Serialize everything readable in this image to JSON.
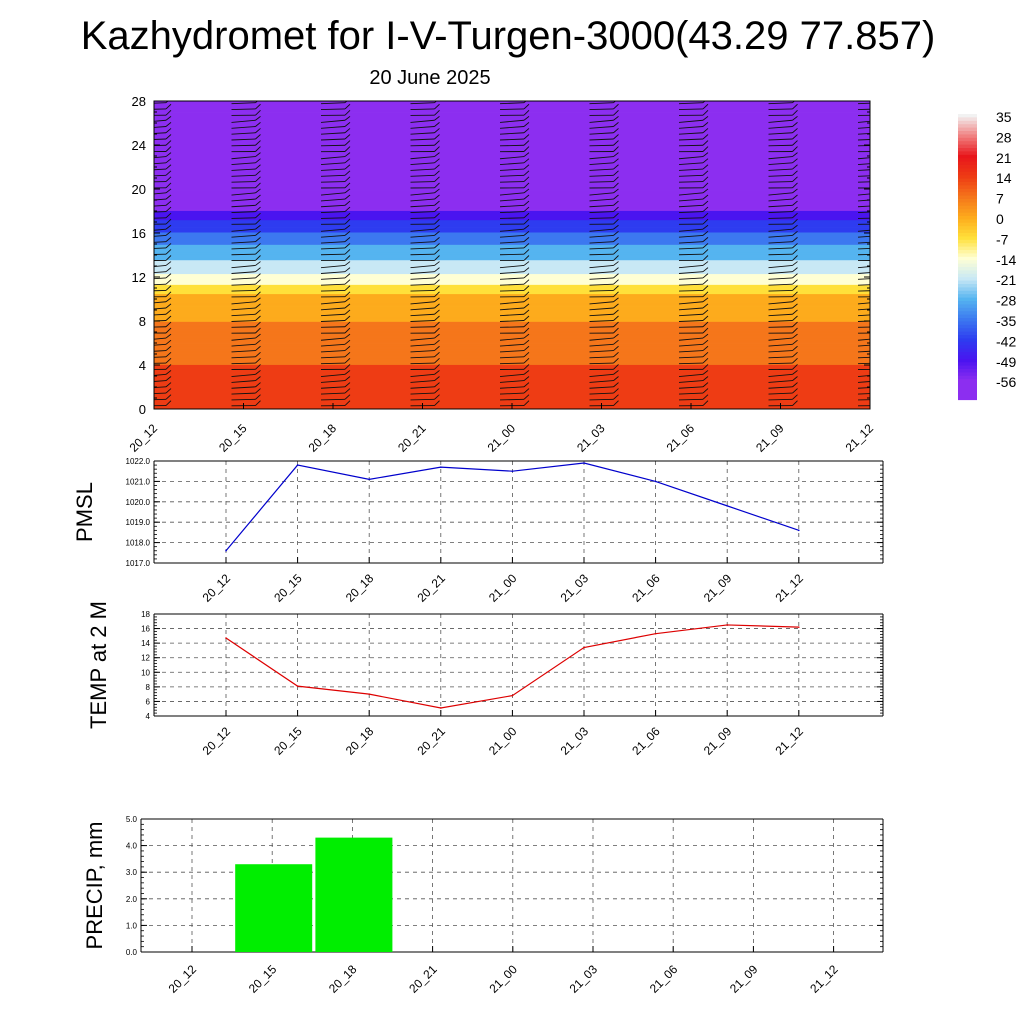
{
  "title": "Kazhydromet for I-V-Turgen-3000(43.29 77.857)",
  "subtitle": "20 June 2025",
  "chart_data": [
    {
      "type": "heatmap",
      "title": "",
      "x_ticks": [
        "20_12",
        "20_15",
        "20_18",
        "20_21",
        "21_00",
        "21_03",
        "21_06",
        "21_09",
        "21_12"
      ],
      "y_ticks": [
        0,
        4,
        8,
        12,
        16,
        20,
        24,
        28
      ],
      "ylim": [
        0,
        28
      ],
      "colorbar": {
        "labels": [
          "35",
          "28",
          "21",
          "14",
          "7",
          "0",
          "-7",
          "-14",
          "-21",
          "-28",
          "-35",
          "-42",
          "-49",
          "-56"
        ],
        "colors": [
          "#f2f2f2",
          "#f08080",
          "#e8161b",
          "#ee3c14",
          "#f5761b",
          "#fdab1c",
          "#ffe03a",
          "#ffffd4",
          "#c8e8f5",
          "#55b4f0",
          "#3c78f0",
          "#2e3cf0",
          "#4a14f0",
          "#8c2ef0"
        ]
      },
      "temperature_profile": [
        {
          "h": 0,
          "t": 21
        },
        {
          "h": 4,
          "t": 14
        },
        {
          "h": 8,
          "t": 7
        },
        {
          "h": 10.5,
          "t": 0
        },
        {
          "h": 11.5,
          "t": -9
        },
        {
          "h": 13,
          "t": -18
        },
        {
          "h": 15,
          "t": -28
        },
        {
          "h": 17,
          "t": -40
        },
        {
          "h": 19,
          "t": -56
        },
        {
          "h": 21,
          "t": -49
        },
        {
          "h": 22.5,
          "t": -58
        },
        {
          "h": 28,
          "t": -58
        }
      ],
      "wind_barbs": "black barbs at every level for each time step"
    },
    {
      "type": "line",
      "ylabel": "PMSL",
      "x": [
        "20_12",
        "20_15",
        "20_18",
        "20_21",
        "21_00",
        "21_03",
        "21_06",
        "21_09",
        "21_12"
      ],
      "series": [
        {
          "color": "#0000cc",
          "values": [
            1017.6,
            1021.8,
            1021.1,
            1021.7,
            1021.5,
            1021.9,
            1021.0,
            1019.8,
            1018.6
          ]
        }
      ],
      "ylim": [
        1017.0,
        1022.0
      ],
      "y_ticks": [
        "1017.0",
        "1018.0",
        "1019.0",
        "1020.0",
        "1021.0",
        "1022.0"
      ]
    },
    {
      "type": "line",
      "ylabel": "TEMP at 2 M",
      "x": [
        "20_12",
        "20_15",
        "20_18",
        "20_21",
        "21_00",
        "21_03",
        "21_06",
        "21_09",
        "21_12"
      ],
      "series": [
        {
          "color": "#dd0000",
          "values": [
            14.7,
            8.1,
            7.0,
            5.1,
            6.8,
            13.4,
            15.3,
            16.5,
            16.2
          ]
        }
      ],
      "ylim": [
        4,
        18
      ],
      "y_ticks": [
        "4",
        "6",
        "8",
        "10",
        "12",
        "14",
        "16",
        "18"
      ]
    },
    {
      "type": "bar",
      "ylabel": "PRECIP, mm",
      "categories": [
        "20_12",
        "20_15",
        "20_18",
        "20_21",
        "21_00",
        "21_03",
        "21_06",
        "21_09",
        "21_12"
      ],
      "bars": [
        {
          "x": "20_15",
          "value": 3.3
        },
        {
          "x": "20_18",
          "value": 4.3
        }
      ],
      "bar_color": "#00ee00",
      "ylim": [
        0.0,
        5.0
      ],
      "y_ticks": [
        "0.0",
        "1.0",
        "2.0",
        "3.0",
        "4.0",
        "5.0"
      ]
    }
  ]
}
